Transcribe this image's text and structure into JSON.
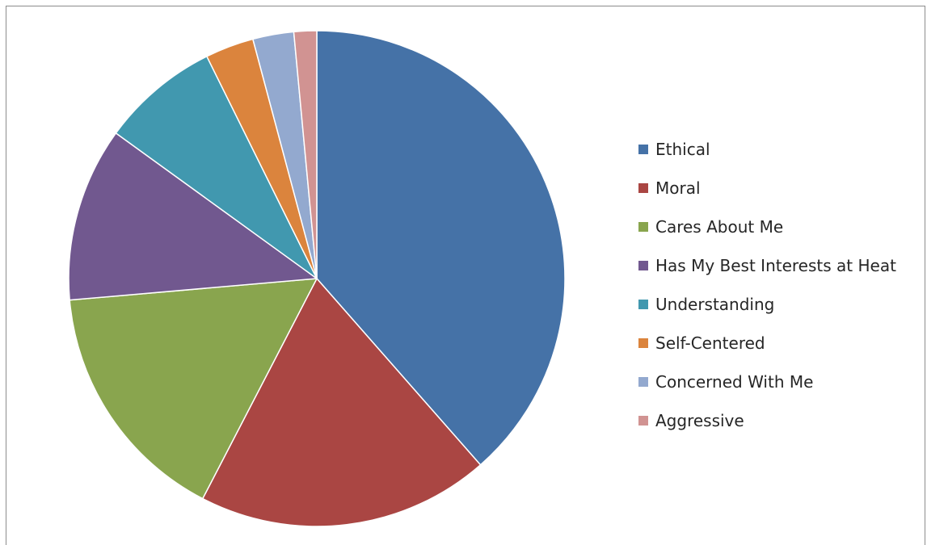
{
  "chart_data": {
    "type": "pie",
    "title": "",
    "legend_position": "right",
    "slices": [
      {
        "label": "Ethical",
        "value": 39.0,
        "color": "#4572A7"
      },
      {
        "label": "Moral",
        "value": 19.3,
        "color": "#AA4643"
      },
      {
        "label": "Cares About Me",
        "value": 16.2,
        "color": "#89A54E"
      },
      {
        "label": "Has My Best Interests at Heat",
        "value": 11.5,
        "color": "#71588F"
      },
      {
        "label": "Understanding",
        "value": 7.8,
        "color": "#4198AF"
      },
      {
        "label": "Self-Centered",
        "value": 3.2,
        "color": "#DB843D"
      },
      {
        "label": "Concerned With Me",
        "value": 2.7,
        "color": "#93A9CF"
      },
      {
        "label": "Aggressive",
        "value": 1.5,
        "color": "#D19392"
      }
    ]
  }
}
